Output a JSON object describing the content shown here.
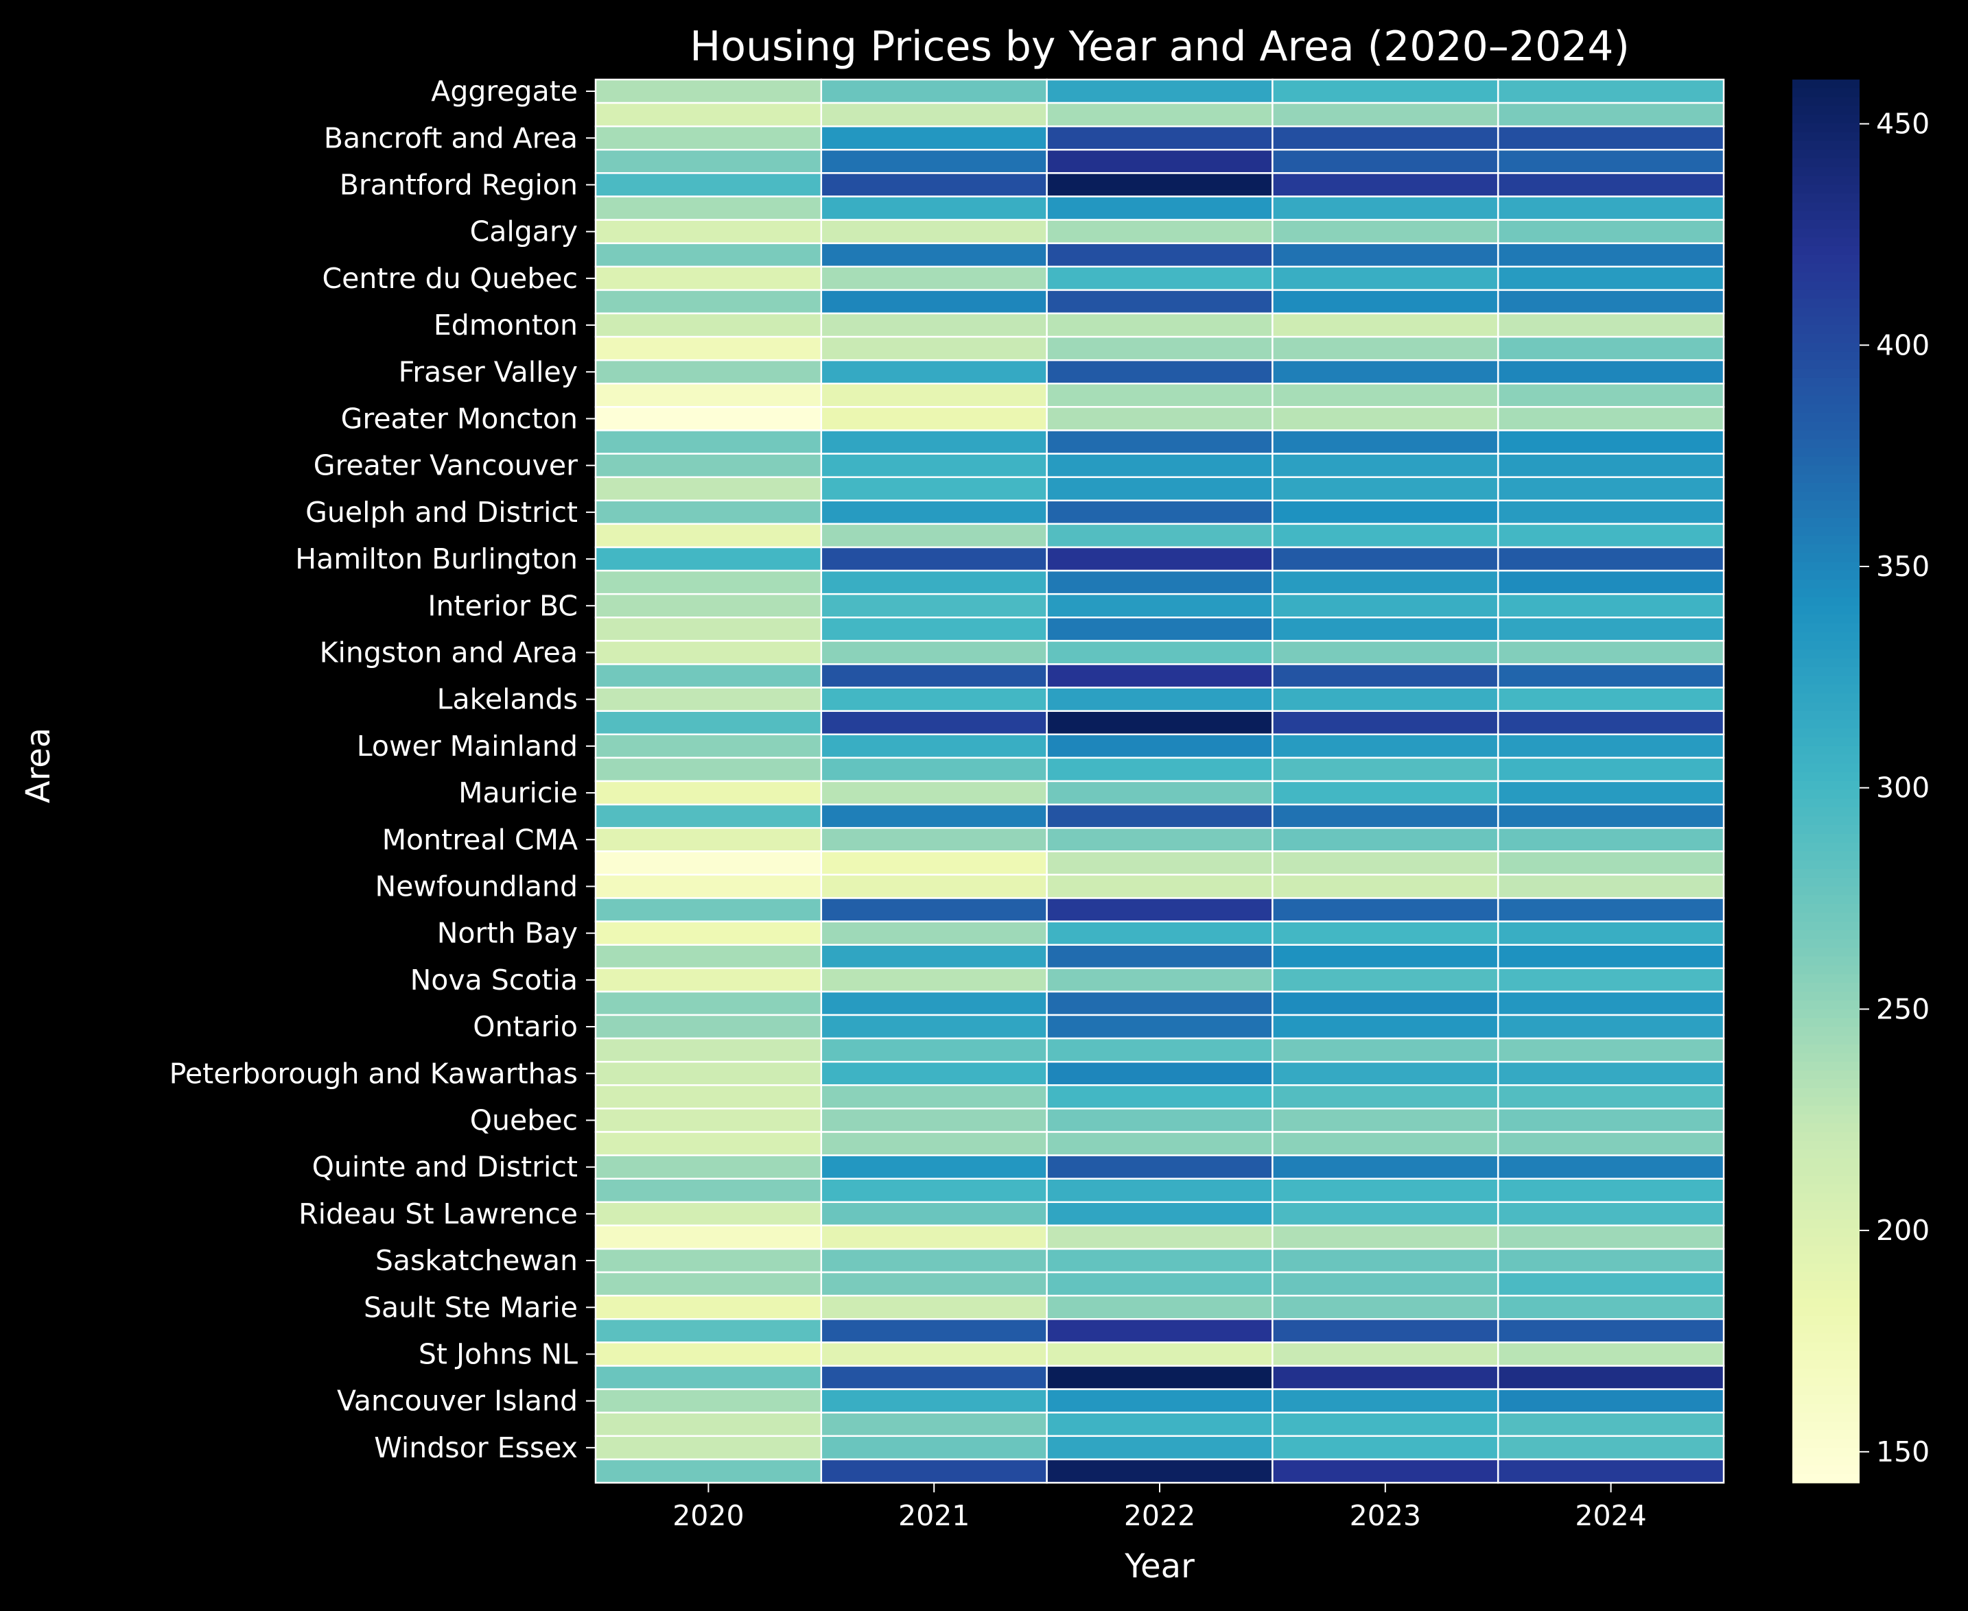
{
  "chart_data": {
    "type": "heatmap",
    "title": "Housing Prices by Year and Area (2020–2024)",
    "xlabel": "Year",
    "ylabel": "Area",
    "x": [
      "2020",
      "2021",
      "2022",
      "2023",
      "2024"
    ],
    "y_tick_labels": [
      "Aggregate",
      "Bancroft and Area",
      "Brantford Region",
      "Calgary",
      "Centre du Quebec",
      "Edmonton",
      "Fraser Valley",
      "Greater Moncton",
      "Greater Vancouver",
      "Guelph and District",
      "Hamilton Burlington",
      "Interior BC",
      "Kingston and Area",
      "Lakelands",
      "Lower Mainland",
      "Mauricie",
      "Montreal CMA",
      "Newfoundland",
      "North Bay",
      "Nova Scotia",
      "Ontario",
      "Peterborough and Kawarthas",
      "Quebec",
      "Quinte and District",
      "Rideau St Lawrence",
      "Saskatchewan",
      "Sault Ste Marie",
      "St Johns NL",
      "Vancouver Island",
      "Windsor Essex"
    ],
    "y_tick_rows": [
      0,
      2,
      4,
      6,
      8,
      10,
      12,
      14,
      16,
      18,
      20,
      22,
      24,
      26,
      28,
      30,
      32,
      34,
      36,
      38,
      40,
      42,
      44,
      46,
      48,
      50,
      52,
      54,
      56,
      58
    ],
    "values": [
      [
        235,
        275,
        320,
        300,
        295
      ],
      [
        205,
        220,
        240,
        250,
        265
      ],
      [
        240,
        335,
        400,
        395,
        395
      ],
      [
        265,
        365,
        425,
        385,
        375
      ],
      [
        295,
        395,
        458,
        415,
        410
      ],
      [
        240,
        310,
        335,
        315,
        315
      ],
      [
        205,
        215,
        240,
        255,
        270
      ],
      [
        265,
        360,
        395,
        365,
        360
      ],
      [
        200,
        240,
        300,
        310,
        330
      ],
      [
        255,
        350,
        390,
        345,
        355
      ],
      [
        215,
        225,
        230,
        215,
        225
      ],
      [
        175,
        220,
        245,
        245,
        270
      ],
      [
        250,
        315,
        385,
        355,
        350
      ],
      [
        165,
        190,
        240,
        240,
        255
      ],
      [
        145,
        185,
        235,
        230,
        240
      ],
      [
        270,
        320,
        370,
        355,
        340
      ],
      [
        260,
        305,
        330,
        325,
        330
      ],
      [
        225,
        300,
        330,
        320,
        325
      ],
      [
        265,
        330,
        375,
        340,
        330
      ],
      [
        190,
        245,
        290,
        300,
        300
      ],
      [
        300,
        395,
        420,
        385,
        385
      ],
      [
        240,
        310,
        360,
        330,
        345
      ],
      [
        235,
        295,
        330,
        310,
        305
      ],
      [
        220,
        300,
        360,
        330,
        320
      ],
      [
        210,
        255,
        280,
        265,
        260
      ],
      [
        270,
        390,
        420,
        390,
        375
      ],
      [
        225,
        300,
        325,
        310,
        300
      ],
      [
        290,
        410,
        458,
        410,
        405
      ],
      [
        255,
        310,
        350,
        330,
        330
      ],
      [
        245,
        280,
        300,
        290,
        305
      ],
      [
        185,
        230,
        270,
        300,
        330
      ],
      [
        290,
        355,
        390,
        365,
        360
      ],
      [
        195,
        250,
        265,
        275,
        275
      ],
      [
        150,
        180,
        225,
        225,
        240
      ],
      [
        170,
        190,
        215,
        215,
        225
      ],
      [
        270,
        380,
        415,
        375,
        370
      ],
      [
        180,
        245,
        305,
        300,
        310
      ],
      [
        240,
        320,
        370,
        340,
        340
      ],
      [
        190,
        230,
        260,
        290,
        295
      ],
      [
        255,
        330,
        370,
        345,
        335
      ],
      [
        250,
        320,
        365,
        335,
        325
      ],
      [
        220,
        280,
        285,
        270,
        265
      ],
      [
        215,
        305,
        350,
        315,
        315
      ],
      [
        210,
        255,
        300,
        290,
        290
      ],
      [
        210,
        250,
        270,
        260,
        270
      ],
      [
        205,
        245,
        255,
        255,
        260
      ],
      [
        245,
        335,
        385,
        355,
        355
      ],
      [
        260,
        300,
        310,
        300,
        300
      ],
      [
        210,
        275,
        320,
        295,
        295
      ],
      [
        165,
        190,
        225,
        235,
        245
      ],
      [
        245,
        270,
        280,
        275,
        275
      ],
      [
        245,
        265,
        280,
        275,
        295
      ],
      [
        185,
        215,
        255,
        265,
        280
      ],
      [
        285,
        385,
        420,
        390,
        385
      ],
      [
        185,
        195,
        200,
        220,
        230
      ],
      [
        275,
        390,
        460,
        425,
        430
      ],
      [
        240,
        310,
        335,
        330,
        350
      ],
      [
        220,
        265,
        305,
        300,
        290
      ],
      [
        220,
        275,
        320,
        300,
        290
      ],
      [
        270,
        400,
        455,
        420,
        415
      ]
    ],
    "colorbar": {
      "colormap": "YlGnBu",
      "vmin": 143,
      "vmax": 460,
      "ticks": [
        150,
        200,
        250,
        300,
        350,
        400,
        450
      ]
    },
    "grid": false,
    "legend": "colorbar-right"
  }
}
